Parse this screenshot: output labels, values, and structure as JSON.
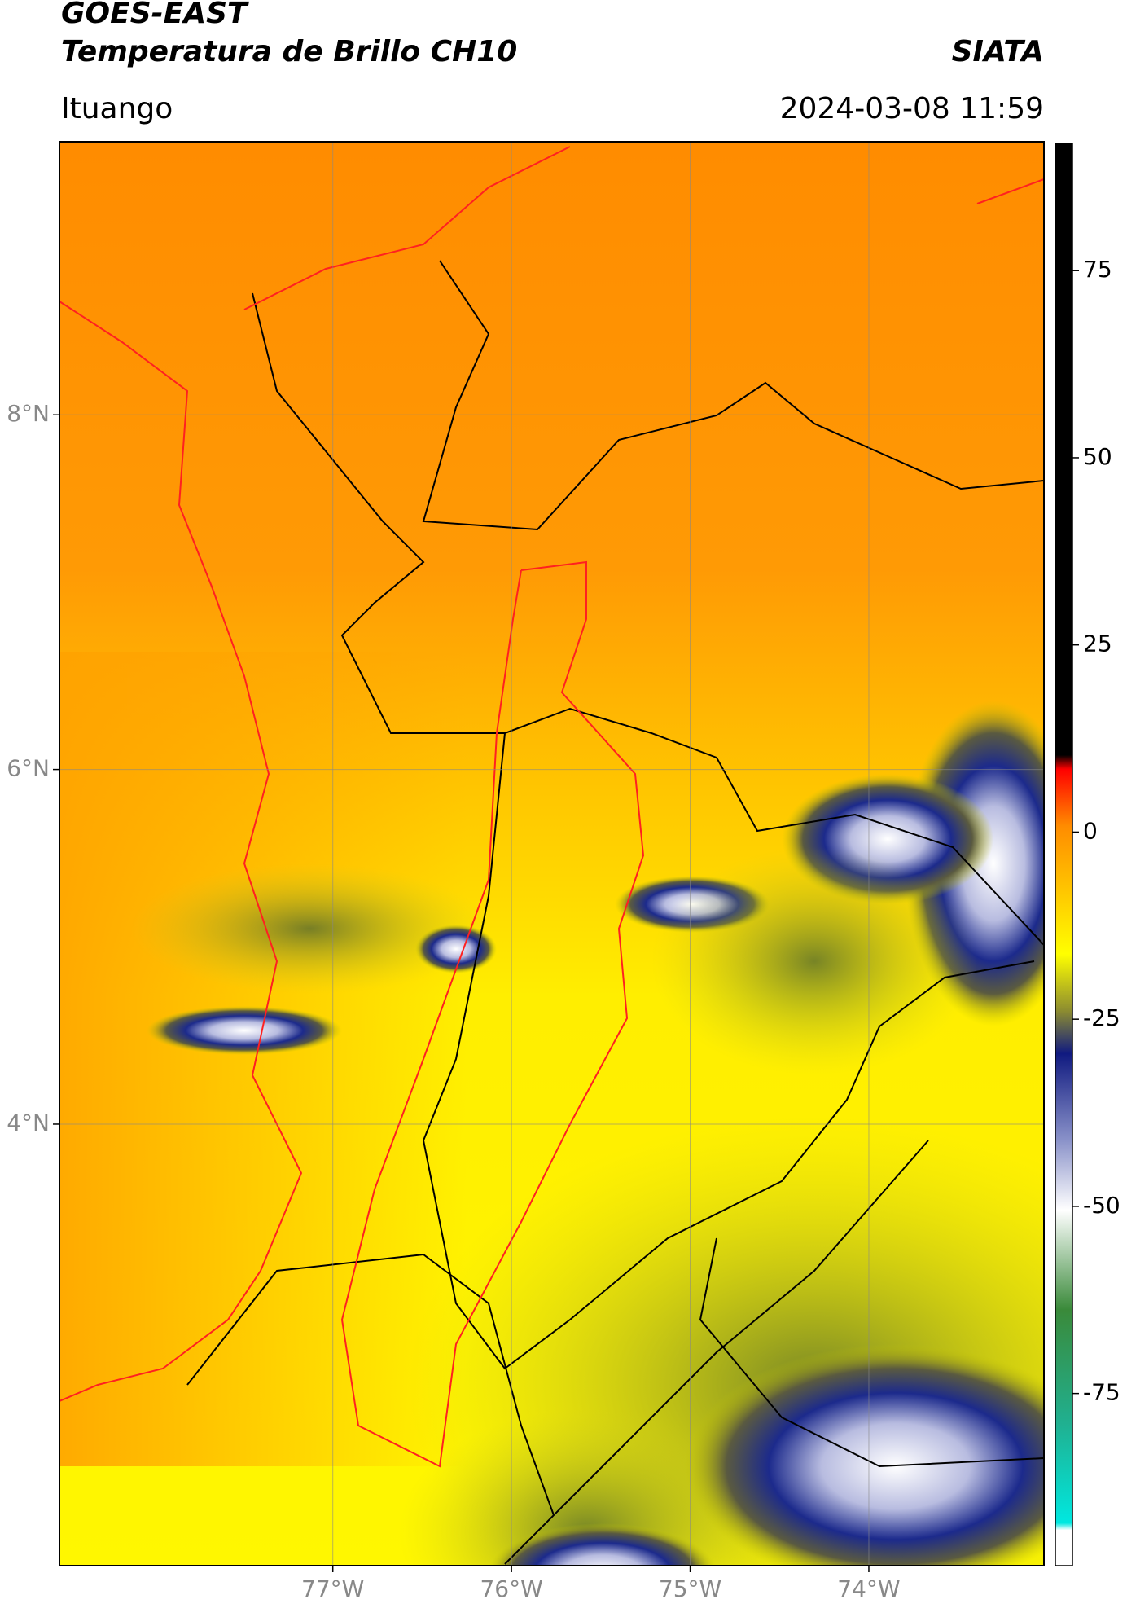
{
  "header": {
    "title": "GOES-EAST",
    "subtitle": "Temperatura de Brillo CH10",
    "source": "SIATA",
    "location": "Ituango",
    "datetime": "2024-03-08 11:59"
  },
  "map": {
    "xlim": [
      -78.53,
      -73.02
    ],
    "ylim": [
      1.51,
      9.54
    ],
    "xticks": [
      {
        "value": -77,
        "label": "77°W"
      },
      {
        "value": -76,
        "label": "76°W"
      },
      {
        "value": -75,
        "label": "75°W"
      },
      {
        "value": -74,
        "label": "74°W"
      }
    ],
    "yticks": [
      {
        "value": 8,
        "label": "8°N"
      },
      {
        "value": 6,
        "label": "6°N"
      },
      {
        "value": 4,
        "label": "4°N"
      }
    ],
    "grid": true
  },
  "colorbar": {
    "lim": [
      -98,
      92
    ],
    "ticks": [
      75,
      50,
      25,
      0,
      -25,
      -50,
      -75
    ]
  }
}
